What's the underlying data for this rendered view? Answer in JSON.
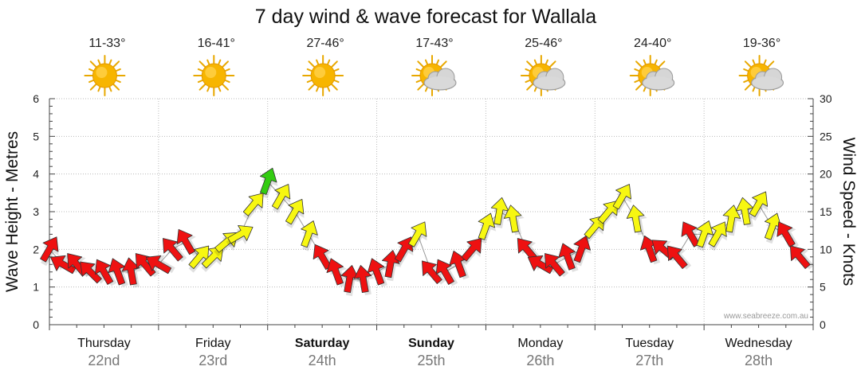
{
  "chart_data": {
    "type": "line",
    "title": "7 day wind & wave forecast for Wallala",
    "ylabel_left": "Wave Height - Metres",
    "ylabel_right": "Wind Speed - Knots",
    "ylim_left": [
      0,
      6
    ],
    "ylim_right": [
      0,
      30
    ],
    "yticks_left": [
      "0",
      "1",
      "2",
      "3",
      "4",
      "5",
      "6"
    ],
    "yticks_right": [
      "0",
      "5",
      "10",
      "15",
      "20",
      "25",
      "30"
    ],
    "days": [
      {
        "name": "Thursday",
        "date": "22nd",
        "temp": "11-33°",
        "weather": "sunny",
        "bold": false
      },
      {
        "name": "Friday",
        "date": "23rd",
        "temp": "16-41°",
        "weather": "sunny",
        "bold": false
      },
      {
        "name": "Saturday",
        "date": "24th",
        "temp": "27-46°",
        "weather": "sunny",
        "bold": true
      },
      {
        "name": "Sunday",
        "date": "25th",
        "temp": "17-43°",
        "weather": "partly-cloudy",
        "bold": true
      },
      {
        "name": "Monday",
        "date": "26th",
        "temp": "25-46°",
        "weather": "partly-cloudy",
        "bold": false
      },
      {
        "name": "Tuesday",
        "date": "27th",
        "temp": "24-40°",
        "weather": "partly-cloudy",
        "bold": false
      },
      {
        "name": "Wednesday",
        "date": "28th",
        "temp": "19-36°",
        "weather": "partly-cloudy",
        "bold": false
      }
    ],
    "wind_series": {
      "name": "Wind Speed (knots)",
      "hours": [
        0,
        3,
        6,
        9,
        12,
        15,
        18,
        21,
        24,
        27,
        30,
        33,
        36,
        39,
        42,
        45,
        48,
        51,
        54,
        57,
        60,
        63,
        66,
        69,
        72,
        75,
        78,
        81,
        84,
        87,
        90,
        93,
        96,
        99,
        102,
        105,
        108,
        111,
        114,
        117,
        120,
        123,
        126,
        129,
        132,
        135,
        138,
        141,
        144,
        147,
        150,
        153,
        156,
        159,
        162,
        165
      ],
      "values": [
        10,
        8,
        8,
        7,
        7,
        7,
        7,
        8,
        8,
        10,
        11,
        9,
        9,
        11,
        12,
        16,
        19,
        17,
        15,
        12,
        9,
        7,
        6,
        6,
        7,
        8,
        10,
        12,
        7,
        7,
        8,
        10,
        13,
        15,
        14,
        10,
        8,
        8,
        9,
        10,
        13,
        15,
        17,
        14,
        10,
        10,
        9,
        12,
        12,
        12,
        14,
        15,
        16,
        13,
        12,
        9
      ],
      "directions": [
        30,
        300,
        320,
        315,
        330,
        340,
        350,
        320,
        300,
        320,
        330,
        40,
        45,
        50,
        60,
        40,
        20,
        30,
        30,
        20,
        330,
        340,
        10,
        350,
        340,
        10,
        30,
        30,
        320,
        330,
        340,
        40,
        20,
        10,
        350,
        320,
        300,
        320,
        340,
        20,
        40,
        40,
        30,
        350,
        340,
        310,
        320,
        330,
        20,
        30,
        10,
        350,
        30,
        20,
        330,
        320
      ],
      "colors": [
        "red",
        "red",
        "red",
        "red",
        "red",
        "red",
        "red",
        "red",
        "red",
        "red",
        "red",
        "yellow",
        "yellow",
        "yellow",
        "yellow",
        "yellow",
        "green",
        "yellow",
        "yellow",
        "yellow",
        "red",
        "red",
        "red",
        "red",
        "red",
        "red",
        "red",
        "yellow",
        "red",
        "red",
        "red",
        "red",
        "yellow",
        "yellow",
        "yellow",
        "red",
        "red",
        "red",
        "red",
        "red",
        "yellow",
        "yellow",
        "yellow",
        "yellow",
        "red",
        "red",
        "red",
        "red",
        "yellow",
        "yellow",
        "yellow",
        "yellow",
        "yellow",
        "yellow",
        "red",
        "red"
      ]
    },
    "credit": "www.seabreeze.com.au"
  },
  "colors": {
    "red": "#ee1111",
    "yellow": "#f7f711",
    "green": "#33cc11",
    "grid": "#bbbbbb",
    "axis": "#444444"
  }
}
